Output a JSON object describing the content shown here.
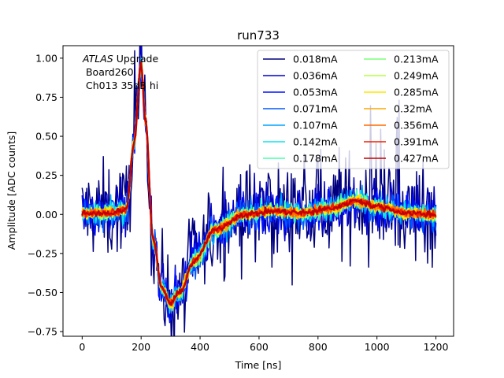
{
  "chart_data": {
    "type": "line",
    "title": "run733",
    "xlabel": "Time [ns]",
    "ylabel": "Amplitude [ADC counts]",
    "xlim": [
      -65,
      1260
    ],
    "ylim": [
      -0.78,
      1.08
    ],
    "xticks": [
      0,
      200,
      400,
      600,
      800,
      1000,
      1200
    ],
    "yticks": [
      -0.75,
      -0.5,
      -0.25,
      0.0,
      0.25,
      0.5,
      0.75,
      1.0
    ],
    "xtick_labels": [
      "0",
      "200",
      "400",
      "600",
      "800",
      "1000",
      "1200"
    ],
    "ytick_labels": [
      "−0.75",
      "−0.50",
      "−0.25",
      "0.00",
      "0.25",
      "0.50",
      "0.75",
      "1.00"
    ],
    "grid": false,
    "legend_location": "top-right",
    "legend_columns": 2,
    "annotation": {
      "experiment": "ATLAS",
      "experiment_suffix": " Upgrade",
      "line2": " Board260",
      "line3": " Ch013 35dB hi"
    },
    "pulse_shape": {
      "x": [
        0,
        100,
        150,
        175,
        200,
        215,
        240,
        270,
        300,
        330,
        380,
        450,
        550,
        650,
        750,
        850,
        930,
        1000,
        1100,
        1200
      ],
      "y": [
        0.01,
        0.01,
        0.03,
        0.45,
        0.96,
        0.6,
        -0.15,
        -0.47,
        -0.57,
        -0.5,
        -0.3,
        -0.1,
        0.0,
        0.02,
        0.01,
        0.04,
        0.09,
        0.05,
        0.01,
        0.0
      ]
    },
    "series": [
      {
        "name": "0.018mA",
        "color": "#00007f",
        "noise": 0.16
      },
      {
        "name": "0.036mA",
        "color": "#0000c8",
        "noise": 0.09
      },
      {
        "name": "0.053mA",
        "color": "#0010ff",
        "noise": 0.065
      },
      {
        "name": "0.071mA",
        "color": "#0058ff",
        "noise": 0.05
      },
      {
        "name": "0.107mA",
        "color": "#00a4ff",
        "noise": 0.04
      },
      {
        "name": "0.142mA",
        "color": "#0ce4f2",
        "noise": 0.033
      },
      {
        "name": "0.178mA",
        "color": "#4affad",
        "noise": 0.028
      },
      {
        "name": "0.213mA",
        "color": "#7dff7a",
        "noise": 0.024
      },
      {
        "name": "0.249mA",
        "color": "#b6ff41",
        "noise": 0.021
      },
      {
        "name": "0.285mA",
        "color": "#ffe600",
        "noise": 0.018
      },
      {
        "name": "0.32mA",
        "color": "#ffa700",
        "noise": 0.016
      },
      {
        "name": "0.356mA",
        "color": "#ff6800",
        "noise": 0.014
      },
      {
        "name": "0.391mA",
        "color": "#f22000",
        "noise": 0.012
      },
      {
        "name": "0.427mA",
        "color": "#c30000",
        "noise": 0.01
      }
    ]
  }
}
